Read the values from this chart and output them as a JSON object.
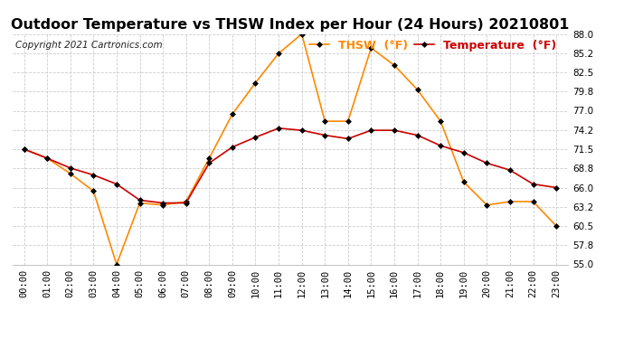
{
  "title": "Outdoor Temperature vs THSW Index per Hour (24 Hours) 20210801",
  "copyright": "Copyright 2021 Cartronics.com",
  "hours": [
    "00:00",
    "01:00",
    "02:00",
    "03:00",
    "04:00",
    "05:00",
    "06:00",
    "07:00",
    "08:00",
    "09:00",
    "10:00",
    "11:00",
    "12:00",
    "13:00",
    "14:00",
    "15:00",
    "16:00",
    "17:00",
    "18:00",
    "19:00",
    "20:00",
    "21:00",
    "22:00",
    "23:00"
  ],
  "temperature": [
    71.5,
    70.2,
    68.8,
    67.8,
    66.5,
    64.2,
    63.8,
    63.8,
    69.5,
    71.8,
    73.2,
    74.5,
    74.2,
    73.5,
    73.0,
    74.2,
    74.2,
    73.5,
    72.0,
    71.0,
    69.5,
    68.5,
    66.5,
    66.0
  ],
  "thsw": [
    71.5,
    70.2,
    68.0,
    65.5,
    55.0,
    63.8,
    63.5,
    64.0,
    70.2,
    76.5,
    81.0,
    85.2,
    88.0,
    75.5,
    75.5,
    86.0,
    83.5,
    80.0,
    75.5,
    66.8,
    63.5,
    64.0,
    64.0,
    60.5
  ],
  "temp_color": "#cc0000",
  "thsw_color": "#ff8800",
  "marker": "D",
  "marker_size": 3,
  "marker_color": "#000000",
  "ylim": [
    55.0,
    88.0
  ],
  "yticks": [
    55.0,
    57.8,
    60.5,
    63.2,
    66.0,
    68.8,
    71.5,
    74.2,
    77.0,
    79.8,
    82.5,
    85.2,
    88.0
  ],
  "background_color": "#ffffff",
  "grid_color": "#cccccc",
  "legend_thsw": "THSW  (°F)",
  "legend_temp": "Temperature  (°F)",
  "title_fontsize": 11.5,
  "copyright_fontsize": 7.5,
  "legend_fontsize": 9,
  "axis_fontsize": 7.5
}
